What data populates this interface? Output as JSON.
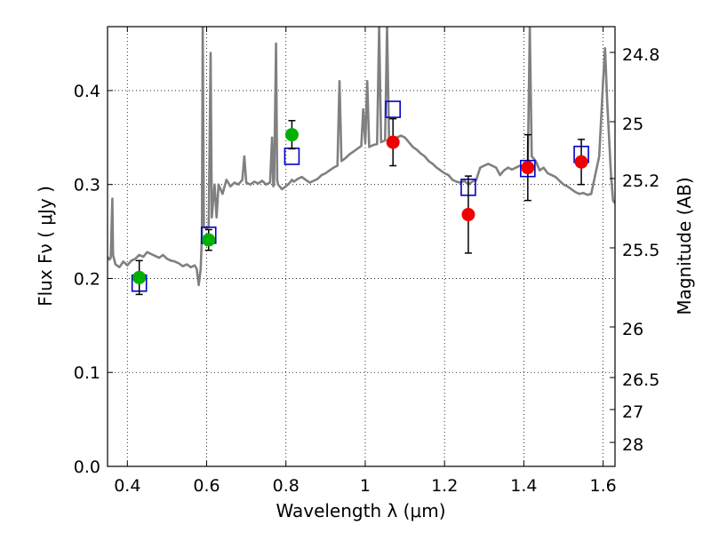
{
  "chart_data": {
    "type": "scatter",
    "xlabel": "Wavelength  λ (μm)",
    "ylabel": "Flux  Fν  ( μJy )",
    "y2label": "Magnitude (AB)",
    "xlim": [
      0.35,
      1.63
    ],
    "ylim": [
      0.0,
      0.468
    ],
    "grid": true,
    "colors": {
      "spectrum": "#808080",
      "model": "#0000cc",
      "green": "#00b000",
      "red": "#ee0000",
      "errorbar": "#000000"
    },
    "x_ticks": [
      {
        "v": 0.4,
        "label": "0.4"
      },
      {
        "v": 0.6,
        "label": "0.6"
      },
      {
        "v": 0.8,
        "label": "0.8"
      },
      {
        "v": 1.0,
        "label": "1"
      },
      {
        "v": 1.2,
        "label": "1.2"
      },
      {
        "v": 1.4,
        "label": "1.4"
      },
      {
        "v": 1.6,
        "label": "1.6"
      }
    ],
    "y_ticks": [
      {
        "v": 0.0,
        "label": "0.0"
      },
      {
        "v": 0.1,
        "label": "0.1"
      },
      {
        "v": 0.2,
        "label": "0.2"
      },
      {
        "v": 0.3,
        "label": "0.3"
      },
      {
        "v": 0.4,
        "label": "0.4"
      }
    ],
    "mag_ticks": [
      {
        "label": "24.8"
      },
      {
        "label": "25"
      },
      {
        "label": "25.2"
      },
      {
        "label": "25.5"
      },
      {
        "label": "26"
      },
      {
        "label": "26.5"
      },
      {
        "label": "27"
      },
      {
        "label": "28"
      }
    ],
    "spectrum": [
      [
        0.35,
        0.223
      ],
      [
        0.355,
        0.22
      ],
      [
        0.358,
        0.222
      ],
      [
        0.362,
        0.285
      ],
      [
        0.364,
        0.225
      ],
      [
        0.37,
        0.215
      ],
      [
        0.38,
        0.212
      ],
      [
        0.39,
        0.218
      ],
      [
        0.4,
        0.214
      ],
      [
        0.41,
        0.219
      ],
      [
        0.42,
        0.221
      ],
      [
        0.43,
        0.225
      ],
      [
        0.44,
        0.223
      ],
      [
        0.45,
        0.228
      ],
      [
        0.46,
        0.226
      ],
      [
        0.47,
        0.224
      ],
      [
        0.48,
        0.222
      ],
      [
        0.49,
        0.225
      ],
      [
        0.5,
        0.221
      ],
      [
        0.51,
        0.219
      ],
      [
        0.52,
        0.218
      ],
      [
        0.53,
        0.216
      ],
      [
        0.54,
        0.213
      ],
      [
        0.55,
        0.215
      ],
      [
        0.56,
        0.212
      ],
      [
        0.57,
        0.214
      ],
      [
        0.575,
        0.21
      ],
      [
        0.58,
        0.193
      ],
      [
        0.585,
        0.21
      ],
      [
        0.588,
        0.245
      ],
      [
        0.59,
        0.47
      ],
      [
        0.593,
        0.255
      ],
      [
        0.6,
        0.253
      ],
      [
        0.605,
        0.255
      ],
      [
        0.61,
        0.44
      ],
      [
        0.613,
        0.265
      ],
      [
        0.62,
        0.3
      ],
      [
        0.625,
        0.265
      ],
      [
        0.63,
        0.3
      ],
      [
        0.64,
        0.29
      ],
      [
        0.65,
        0.305
      ],
      [
        0.66,
        0.298
      ],
      [
        0.67,
        0.302
      ],
      [
        0.68,
        0.3
      ],
      [
        0.69,
        0.305
      ],
      [
        0.695,
        0.33
      ],
      [
        0.7,
        0.302
      ],
      [
        0.71,
        0.3
      ],
      [
        0.72,
        0.303
      ],
      [
        0.73,
        0.301
      ],
      [
        0.74,
        0.304
      ],
      [
        0.75,
        0.3
      ],
      [
        0.76,
        0.302
      ],
      [
        0.765,
        0.35
      ],
      [
        0.768,
        0.298
      ],
      [
        0.77,
        0.3
      ],
      [
        0.775,
        0.45
      ],
      [
        0.778,
        0.305
      ],
      [
        0.78,
        0.3
      ],
      [
        0.79,
        0.295
      ],
      [
        0.8,
        0.298
      ],
      [
        0.81,
        0.302
      ],
      [
        0.815,
        0.305
      ],
      [
        0.82,
        0.303
      ],
      [
        0.83,
        0.306
      ],
      [
        0.84,
        0.308
      ],
      [
        0.85,
        0.305
      ],
      [
        0.86,
        0.302
      ],
      [
        0.87,
        0.304
      ],
      [
        0.88,
        0.306
      ],
      [
        0.89,
        0.31
      ],
      [
        0.9,
        0.312
      ],
      [
        0.91,
        0.315
      ],
      [
        0.92,
        0.318
      ],
      [
        0.93,
        0.32
      ],
      [
        0.935,
        0.41
      ],
      [
        0.94,
        0.325
      ],
      [
        0.95,
        0.328
      ],
      [
        0.96,
        0.332
      ],
      [
        0.97,
        0.335
      ],
      [
        0.98,
        0.338
      ],
      [
        0.99,
        0.341
      ],
      [
        0.995,
        0.38
      ],
      [
        1.0,
        0.344
      ],
      [
        1.005,
        0.41
      ],
      [
        1.01,
        0.34
      ],
      [
        1.02,
        0.342
      ],
      [
        1.03,
        0.343
      ],
      [
        1.035,
        0.47
      ],
      [
        1.04,
        0.345
      ],
      [
        1.05,
        0.347
      ],
      [
        1.055,
        0.47
      ],
      [
        1.06,
        0.35
      ],
      [
        1.07,
        0.348
      ],
      [
        1.08,
        0.35
      ],
      [
        1.09,
        0.352
      ],
      [
        1.1,
        0.35
      ],
      [
        1.11,
        0.345
      ],
      [
        1.12,
        0.34
      ],
      [
        1.13,
        0.337
      ],
      [
        1.14,
        0.333
      ],
      [
        1.15,
        0.33
      ],
      [
        1.16,
        0.325
      ],
      [
        1.17,
        0.322
      ],
      [
        1.18,
        0.318
      ],
      [
        1.19,
        0.315
      ],
      [
        1.2,
        0.312
      ],
      [
        1.21,
        0.31
      ],
      [
        1.22,
        0.305
      ],
      [
        1.23,
        0.303
      ],
      [
        1.24,
        0.302
      ],
      [
        1.25,
        0.304
      ],
      [
        1.26,
        0.3
      ],
      [
        1.27,
        0.303
      ],
      [
        1.28,
        0.305
      ],
      [
        1.29,
        0.318
      ],
      [
        1.3,
        0.32
      ],
      [
        1.31,
        0.322
      ],
      [
        1.32,
        0.32
      ],
      [
        1.33,
        0.318
      ],
      [
        1.34,
        0.31
      ],
      [
        1.35,
        0.315
      ],
      [
        1.36,
        0.318
      ],
      [
        1.37,
        0.316
      ],
      [
        1.38,
        0.318
      ],
      [
        1.39,
        0.32
      ],
      [
        1.4,
        0.318
      ],
      [
        1.41,
        0.322
      ],
      [
        1.415,
        0.47
      ],
      [
        1.42,
        0.33
      ],
      [
        1.43,
        0.325
      ],
      [
        1.44,
        0.315
      ],
      [
        1.45,
        0.318
      ],
      [
        1.46,
        0.312
      ],
      [
        1.47,
        0.31
      ],
      [
        1.48,
        0.308
      ],
      [
        1.49,
        0.304
      ],
      [
        1.5,
        0.3
      ],
      [
        1.51,
        0.298
      ],
      [
        1.52,
        0.295
      ],
      [
        1.53,
        0.292
      ],
      [
        1.54,
        0.29
      ],
      [
        1.55,
        0.291
      ],
      [
        1.56,
        0.289
      ],
      [
        1.57,
        0.29
      ],
      [
        1.58,
        0.31
      ],
      [
        1.59,
        0.33
      ],
      [
        1.6,
        0.41
      ],
      [
        1.605,
        0.445
      ],
      [
        1.61,
        0.39
      ],
      [
        1.615,
        0.35
      ],
      [
        1.62,
        0.31
      ],
      [
        1.625,
        0.283
      ],
      [
        1.63,
        0.28
      ]
    ],
    "models": [
      {
        "x": 0.43,
        "y": 0.195
      },
      {
        "x": 0.605,
        "y": 0.246
      },
      {
        "x": 0.815,
        "y": 0.33
      },
      {
        "x": 1.07,
        "y": 0.38
      },
      {
        "x": 1.26,
        "y": 0.297
      },
      {
        "x": 1.41,
        "y": 0.317
      },
      {
        "x": 1.545,
        "y": 0.332
      }
    ],
    "observed": [
      {
        "x": 0.43,
        "y": 0.201,
        "err": 0.018,
        "color": "green"
      },
      {
        "x": 0.605,
        "y": 0.241,
        "err": 0.011,
        "color": "green"
      },
      {
        "x": 0.815,
        "y": 0.353,
        "err": 0.015,
        "color": "green"
      },
      {
        "x": 1.07,
        "y": 0.345,
        "err": 0.025,
        "color": "red"
      },
      {
        "x": 1.26,
        "y": 0.268,
        "err": 0.041,
        "color": "red"
      },
      {
        "x": 1.41,
        "y": 0.318,
        "err": 0.035,
        "color": "red"
      },
      {
        "x": 1.545,
        "y": 0.324,
        "err": 0.024,
        "color": "red"
      }
    ]
  }
}
